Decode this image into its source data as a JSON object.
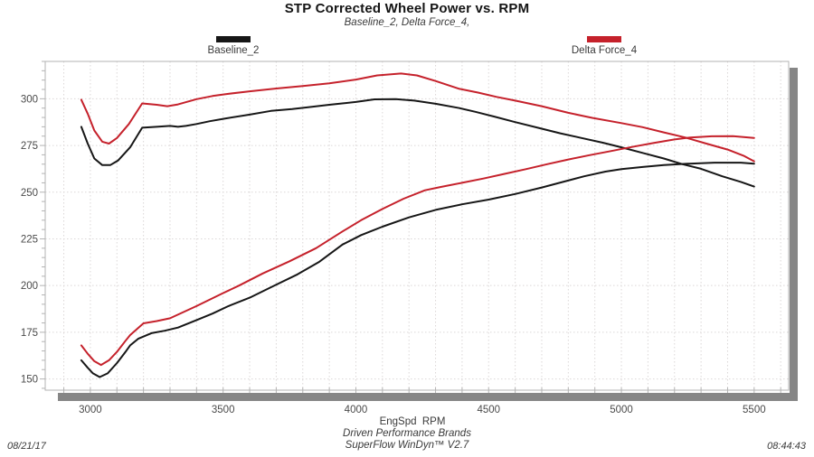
{
  "title": "STP Corrected Wheel Power vs. RPM",
  "subtitle": "Baseline_2, Delta Force_4,",
  "legend": [
    {
      "label": "Baseline_2",
      "color": "#161616"
    },
    {
      "label": "Delta Force_4",
      "color": "#c5212b"
    }
  ],
  "footer": {
    "date": "08/21/17",
    "brand": "Driven Performance Brands",
    "software": "SuperFlow WinDyn™ V2.7",
    "time": "08:44:43"
  },
  "chart_data": {
    "type": "line",
    "title": "STP Corrected Wheel Power vs. RPM",
    "subtitle": "Baseline_2, Delta Force_4,",
    "xlabel": "EngSpd  RPM",
    "ylabel": "",
    "xlim": [
      2830,
      5630
    ],
    "ylim": [
      144,
      320
    ],
    "x_ticks": [
      3000,
      3500,
      4000,
      4500,
      5000,
      5500
    ],
    "y_ticks": [
      150,
      175,
      200,
      225,
      250,
      275,
      300
    ],
    "x_minor_step": 100,
    "y_minor_step": 5,
    "grid": "dotted",
    "legend_position": "top",
    "colors": {
      "grid": "#dbd7d7",
      "border": "#b3b3b3",
      "shadow": "#868686"
    },
    "series": [
      {
        "name": "Baseline_2",
        "curve": "upper",
        "color": "#161616",
        "points": [
          [
            2966,
            285
          ],
          [
            2990,
            276
          ],
          [
            3015,
            268
          ],
          [
            3045,
            264.5
          ],
          [
            3075,
            264.5
          ],
          [
            3105,
            267
          ],
          [
            3150,
            274
          ],
          [
            3195,
            284.5
          ],
          [
            3250,
            285
          ],
          [
            3300,
            285.5
          ],
          [
            3330,
            285
          ],
          [
            3360,
            285.5
          ],
          [
            3400,
            286.5
          ],
          [
            3450,
            288
          ],
          [
            3510,
            289.5
          ],
          [
            3600,
            291.5
          ],
          [
            3680,
            293.5
          ],
          [
            3760,
            294.5
          ],
          [
            3820,
            295.5
          ],
          [
            3900,
            296.8
          ],
          [
            4000,
            298.3
          ],
          [
            4070,
            299.7
          ],
          [
            4150,
            299.8
          ],
          [
            4220,
            299
          ],
          [
            4300,
            297.3
          ],
          [
            4390,
            295
          ],
          [
            4450,
            293
          ],
          [
            4520,
            290.5
          ],
          [
            4600,
            287.5
          ],
          [
            4700,
            284
          ],
          [
            4770,
            281.5
          ],
          [
            4850,
            279
          ],
          [
            4930,
            276.5
          ],
          [
            5000,
            274
          ],
          [
            5080,
            271
          ],
          [
            5160,
            268
          ],
          [
            5230,
            265
          ],
          [
            5300,
            262.5
          ],
          [
            5380,
            258.5
          ],
          [
            5450,
            255.5
          ],
          [
            5500,
            253
          ]
        ]
      },
      {
        "name": "Baseline_2",
        "curve": "lower",
        "color": "#161616",
        "points": [
          [
            2966,
            160
          ],
          [
            2990,
            156
          ],
          [
            3010,
            153
          ],
          [
            3035,
            151
          ],
          [
            3065,
            153
          ],
          [
            3100,
            158.5
          ],
          [
            3135,
            165
          ],
          [
            3150,
            168
          ],
          [
            3180,
            171.5
          ],
          [
            3230,
            174.5
          ],
          [
            3280,
            175.8
          ],
          [
            3330,
            177.5
          ],
          [
            3400,
            181.5
          ],
          [
            3460,
            185
          ],
          [
            3520,
            189
          ],
          [
            3600,
            193.5
          ],
          [
            3690,
            199.8
          ],
          [
            3780,
            206
          ],
          [
            3860,
            212.5
          ],
          [
            3950,
            222
          ],
          [
            4020,
            227
          ],
          [
            4100,
            231.5
          ],
          [
            4200,
            236.5
          ],
          [
            4300,
            240.5
          ],
          [
            4400,
            243.5
          ],
          [
            4500,
            246
          ],
          [
            4600,
            249
          ],
          [
            4700,
            252.5
          ],
          [
            4780,
            255.5
          ],
          [
            4860,
            258.5
          ],
          [
            4940,
            261
          ],
          [
            5000,
            262.3
          ],
          [
            5080,
            263.5
          ],
          [
            5160,
            264.5
          ],
          [
            5250,
            265.2
          ],
          [
            5350,
            265.8
          ],
          [
            5450,
            265.8
          ],
          [
            5500,
            265.2
          ]
        ]
      },
      {
        "name": "Delta Force_4",
        "curve": "upper",
        "color": "#c5212b",
        "points": [
          [
            2966,
            299.5
          ],
          [
            2990,
            292
          ],
          [
            3015,
            283
          ],
          [
            3045,
            277
          ],
          [
            3070,
            276
          ],
          [
            3100,
            279
          ],
          [
            3145,
            286.5
          ],
          [
            3195,
            297.5
          ],
          [
            3250,
            296.8
          ],
          [
            3290,
            296
          ],
          [
            3330,
            297
          ],
          [
            3400,
            299.8
          ],
          [
            3460,
            301.5
          ],
          [
            3510,
            302.5
          ],
          [
            3600,
            304
          ],
          [
            3700,
            305.5
          ],
          [
            3800,
            306.8
          ],
          [
            3900,
            308.3
          ],
          [
            4000,
            310.3
          ],
          [
            4080,
            312.5
          ],
          [
            4170,
            313.5
          ],
          [
            4230,
            312.5
          ],
          [
            4300,
            309.5
          ],
          [
            4390,
            305.3
          ],
          [
            4460,
            303.3
          ],
          [
            4530,
            301
          ],
          [
            4600,
            299
          ],
          [
            4700,
            296
          ],
          [
            4800,
            292.5
          ],
          [
            4890,
            289.8
          ],
          [
            5000,
            287
          ],
          [
            5080,
            284.8
          ],
          [
            5160,
            282
          ],
          [
            5240,
            279.3
          ],
          [
            5320,
            276
          ],
          [
            5400,
            272.8
          ],
          [
            5460,
            269.5
          ],
          [
            5500,
            266.5
          ]
        ]
      },
      {
        "name": "Delta Force_4",
        "curve": "lower",
        "color": "#c5212b",
        "points": [
          [
            2966,
            168
          ],
          [
            2990,
            163.5
          ],
          [
            3015,
            159.5
          ],
          [
            3040,
            157.5
          ],
          [
            3070,
            160
          ],
          [
            3100,
            164.5
          ],
          [
            3130,
            170
          ],
          [
            3150,
            173.5
          ],
          [
            3200,
            179.8
          ],
          [
            3250,
            181
          ],
          [
            3300,
            182.5
          ],
          [
            3400,
            189
          ],
          [
            3500,
            196
          ],
          [
            3560,
            200
          ],
          [
            3650,
            206.5
          ],
          [
            3750,
            213
          ],
          [
            3850,
            220
          ],
          [
            3950,
            229
          ],
          [
            4020,
            235
          ],
          [
            4100,
            241
          ],
          [
            4180,
            246.5
          ],
          [
            4260,
            251
          ],
          [
            4320,
            252.8
          ],
          [
            4400,
            255
          ],
          [
            4480,
            257.3
          ],
          [
            4560,
            259.8
          ],
          [
            4640,
            262.3
          ],
          [
            4720,
            265
          ],
          [
            4800,
            267.5
          ],
          [
            4880,
            269.8
          ],
          [
            4960,
            272
          ],
          [
            5040,
            274.2
          ],
          [
            5120,
            276.3
          ],
          [
            5200,
            278.2
          ],
          [
            5260,
            279.3
          ],
          [
            5340,
            279.9
          ],
          [
            5420,
            280
          ],
          [
            5500,
            279
          ]
        ]
      }
    ]
  }
}
